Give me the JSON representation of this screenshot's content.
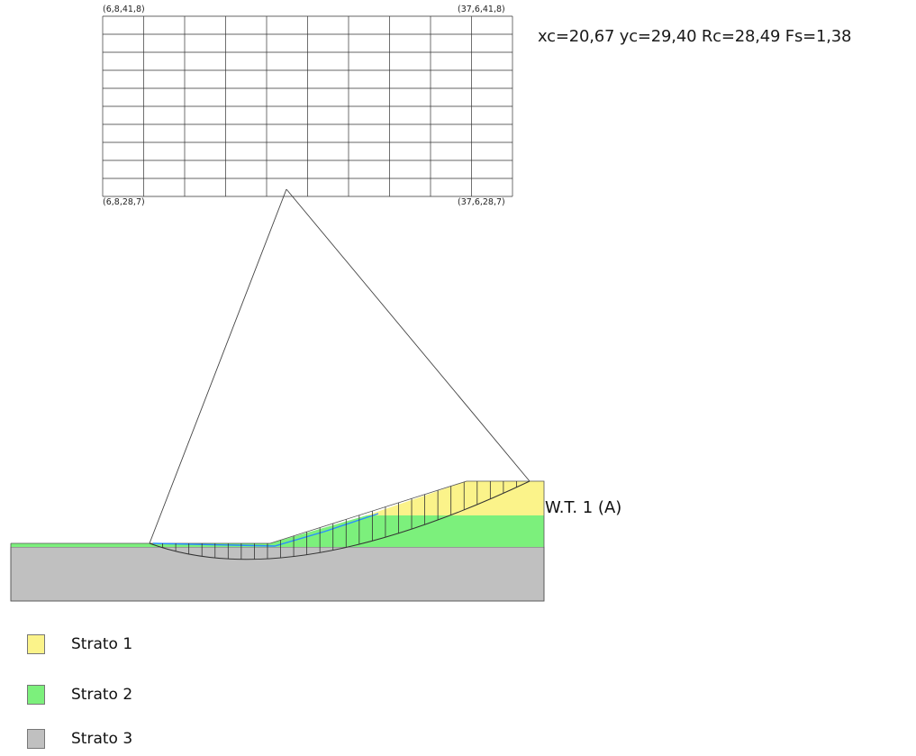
{
  "result_text": "xc=20,67 yc=29,40 Rc=28,49 Fs=1,38",
  "search_grid": {
    "corner_labels": {
      "top_left": "(6,8,41,8)",
      "top_right": "(37,6,41,8)",
      "bottom_left": "(6,8,28,7)",
      "bottom_right": "(37,6,28,7)"
    },
    "columns": 10,
    "rows": 10
  },
  "water_table_label": "W.T. 1 (A)",
  "colors": {
    "strato_1": "#fbf38a",
    "strato_2": "#7cf07c",
    "strato_3": "#c0c0c0",
    "water_table": "#2a8cff",
    "lines": "#333333"
  },
  "legend": [
    {
      "label": "Strato 1",
      "color": "#fbf38a"
    },
    {
      "label": "Strato 2",
      "color": "#7cf07c"
    },
    {
      "label": "Strato 3",
      "color": "#c0c0c0"
    }
  ]
}
